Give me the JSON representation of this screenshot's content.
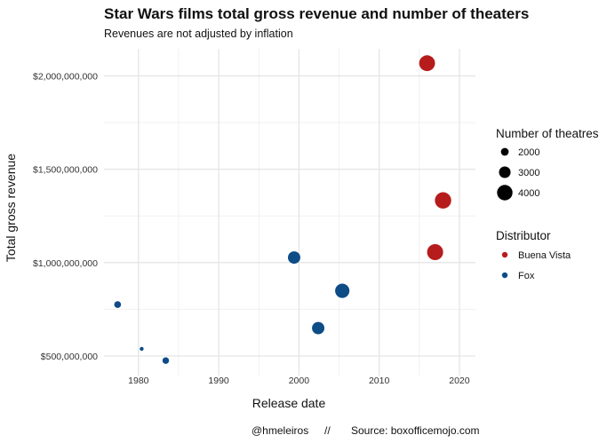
{
  "chart_data": {
    "type": "scatter",
    "title": "Star Wars films total gross revenue and number of theaters",
    "subtitle": "Revenues are not adjusted by inflation",
    "xlabel": "Release date",
    "ylabel": "Total gross revenue",
    "xlim": [
      1975.7,
      2022
    ],
    "ylim": [
      395000000,
      2145000000
    ],
    "x_ticks": [
      1980,
      1990,
      2000,
      2010,
      2020
    ],
    "x_tick_labels": [
      "1980",
      "1990",
      "2000",
      "2010",
      "2020"
    ],
    "y_ticks": [
      500000000,
      1000000000,
      1500000000,
      2000000000
    ],
    "y_tick_labels": [
      "$500,000,000",
      "$1,000,000,000",
      "$1,500,000,000",
      "$2,000,000,000"
    ],
    "grid": true,
    "size_legend": {
      "title": "Number of theatres",
      "entries": [
        {
          "label": "2000",
          "value": 2000
        },
        {
          "label": "3000",
          "value": 3000
        },
        {
          "label": "4000",
          "value": 4000
        }
      ]
    },
    "color_legend": {
      "title": "Distributor",
      "entries": [
        {
          "label": "Buena Vista",
          "color": "#B71C1C"
        },
        {
          "label": "Fox",
          "color": "#0D4C86"
        }
      ]
    },
    "points": [
      {
        "x": 1977.4,
        "y": 775000000,
        "theaters": 1750,
        "distributor": "Fox"
      },
      {
        "x": 1980.4,
        "y": 538000000,
        "theaters": 1000,
        "distributor": "Fox"
      },
      {
        "x": 1983.4,
        "y": 475000000,
        "theaters": 1700,
        "distributor": "Fox"
      },
      {
        "x": 1999.4,
        "y": 1027000000,
        "theaters": 3200,
        "distributor": "Fox"
      },
      {
        "x": 2002.4,
        "y": 649000000,
        "theaters": 3200,
        "distributor": "Fox"
      },
      {
        "x": 2005.4,
        "y": 849000000,
        "theaters": 3700,
        "distributor": "Fox"
      },
      {
        "x": 2015.97,
        "y": 2068000000,
        "theaters": 4100,
        "distributor": "Buena Vista"
      },
      {
        "x": 2016.97,
        "y": 1056000000,
        "theaters": 4150,
        "distributor": "Buena Vista"
      },
      {
        "x": 2017.96,
        "y": 1333000000,
        "theaters": 4230,
        "distributor": "Buena Vista"
      }
    ]
  },
  "caption": {
    "handle": "@hmeleiros",
    "separator": "//",
    "source": "Source: boxofficemojo.com"
  }
}
